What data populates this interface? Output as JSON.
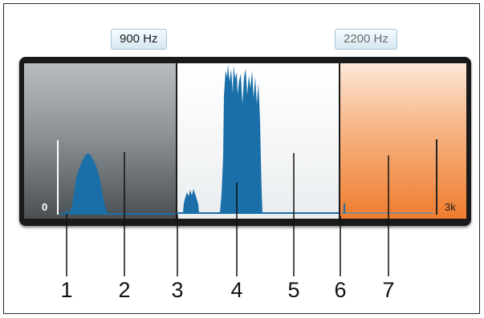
{
  "frequency_labels": {
    "left_marker": "900 Hz",
    "right_marker": "2200 Hz"
  },
  "scale": {
    "min_label": "0",
    "max_label": "3k"
  },
  "callouts": [
    "1",
    "2",
    "3",
    "4",
    "5",
    "6",
    "7"
  ],
  "colors": {
    "spectrum": "#1a6fa8",
    "left_zone": "#8d9396",
    "middle_zone": "#f3f5f6",
    "right_zone": "#ef7c2e",
    "frame": "#1a1a1a"
  }
}
